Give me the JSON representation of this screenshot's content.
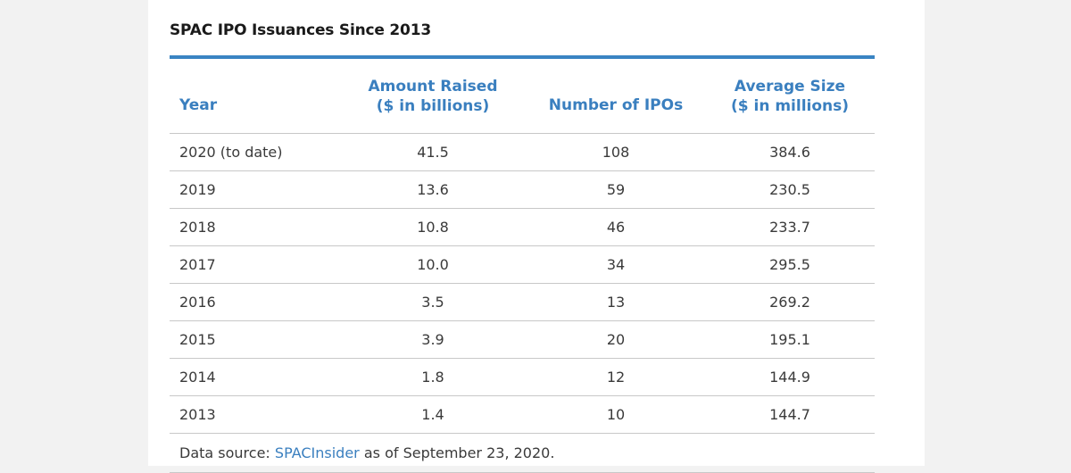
{
  "title": "SPAC IPO Issuances Since 2013",
  "headers": {
    "year": "Year",
    "amount_line1": "Amount Raised",
    "amount_line2": "($ in billions)",
    "number": "Number of IPOs",
    "average_line1": "Average Size",
    "average_line2": "($ in millions)"
  },
  "rows": [
    {
      "year": "2020 (to date)",
      "amount": "41.5",
      "number": "108",
      "average": "384.6"
    },
    {
      "year": "2019",
      "amount": "13.6",
      "number": "59",
      "average": "230.5"
    },
    {
      "year": "2018",
      "amount": "10.8",
      "number": "46",
      "average": "233.7"
    },
    {
      "year": "2017",
      "amount": "10.0",
      "number": "34",
      "average": "295.5"
    },
    {
      "year": "2016",
      "amount": "3.5",
      "number": "13",
      "average": "269.2"
    },
    {
      "year": "2015",
      "amount": "3.9",
      "number": "20",
      "average": "195.1"
    },
    {
      "year": "2014",
      "amount": "1.8",
      "number": "12",
      "average": "144.9"
    },
    {
      "year": "2013",
      "amount": "1.4",
      "number": "10",
      "average": "144.7"
    }
  ],
  "source": {
    "prefix": "Data source: ",
    "link": "SPACInsider",
    "suffix": " as of September 23, 2020."
  },
  "colors": {
    "accent": "#3a84c3",
    "header_text": "#3a7fbf",
    "body_text": "#3a3a3a",
    "background": "#f2f2f2"
  }
}
